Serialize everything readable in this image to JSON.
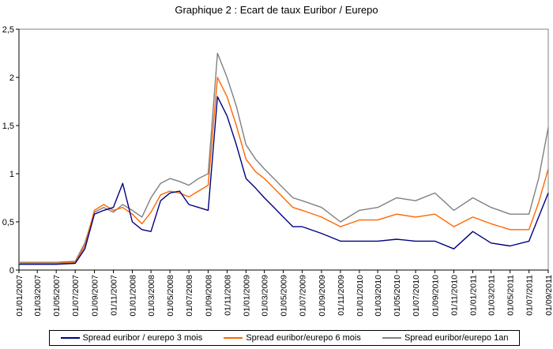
{
  "chart_data": {
    "type": "line",
    "title": "Graphique 2 : Ecart de taux Euribor / Eurepo",
    "xlabel": "",
    "ylabel": "",
    "ylim": [
      0,
      2.5
    ],
    "yticks": [
      "0",
      "0,5",
      "1",
      "1,5",
      "2",
      "2,5"
    ],
    "xticks": [
      "01/01/2007",
      "01/03/2007",
      "01/05/2007",
      "01/07/2007",
      "01/09/2007",
      "01/11/2007",
      "01/01/2008",
      "01/03/2008",
      "01/05/2008",
      "01/07/2008",
      "01/09/2008",
      "01/11/2008",
      "01/01/2009",
      "01/03/2009",
      "01/05/2009",
      "01/07/2009",
      "01/09/2009",
      "01/11/2009",
      "01/01/2010",
      "01/03/2010",
      "01/05/2010",
      "01/07/2010",
      "01/09/2010",
      "01/11/2010",
      "01/01/2011",
      "01/03/2011",
      "01/05/2011",
      "01/07/2011",
      "01/09/2011"
    ],
    "grid": false,
    "legend_position": "bottom",
    "x": [
      "01/01/2007",
      "01/03/2007",
      "01/05/2007",
      "01/07/2007",
      "01/08/2007",
      "01/09/2007",
      "01/10/2007",
      "01/11/2007",
      "01/12/2007",
      "01/01/2008",
      "01/02/2008",
      "01/03/2008",
      "01/04/2008",
      "01/05/2008",
      "01/06/2008",
      "01/07/2008",
      "01/08/2008",
      "01/09/2008",
      "01/10/2008",
      "01/11/2008",
      "01/12/2008",
      "01/01/2009",
      "01/02/2009",
      "01/03/2009",
      "01/04/2009",
      "01/05/2009",
      "01/06/2009",
      "01/07/2009",
      "01/09/2009",
      "01/11/2009",
      "01/01/2010",
      "01/03/2010",
      "01/05/2010",
      "01/07/2010",
      "01/09/2010",
      "01/11/2010",
      "01/01/2011",
      "01/03/2011",
      "01/05/2011",
      "01/07/2011",
      "01/08/2011",
      "01/09/2011"
    ],
    "series": [
      {
        "name": "Spread euribor / eurepo 3 mois",
        "color": "#000080",
        "values": [
          0.06,
          0.06,
          0.06,
          0.07,
          0.22,
          0.58,
          0.62,
          0.65,
          0.9,
          0.5,
          0.42,
          0.4,
          0.72,
          0.8,
          0.82,
          0.68,
          0.65,
          0.62,
          1.8,
          1.6,
          1.3,
          0.95,
          0.85,
          0.75,
          0.65,
          0.55,
          0.45,
          0.45,
          0.38,
          0.3,
          0.3,
          0.3,
          0.32,
          0.3,
          0.3,
          0.22,
          0.4,
          0.28,
          0.25,
          0.3,
          0.55,
          0.8
        ]
      },
      {
        "name": "Spread euribor/eurepo 6 mois",
        "color": "#FF6600",
        "values": [
          0.07,
          0.07,
          0.07,
          0.08,
          0.25,
          0.62,
          0.68,
          0.62,
          0.65,
          0.58,
          0.48,
          0.6,
          0.78,
          0.82,
          0.8,
          0.76,
          0.82,
          0.88,
          2.0,
          1.8,
          1.5,
          1.15,
          1.02,
          0.95,
          0.85,
          0.75,
          0.65,
          0.62,
          0.55,
          0.45,
          0.52,
          0.52,
          0.58,
          0.55,
          0.58,
          0.45,
          0.55,
          0.48,
          0.42,
          0.42,
          0.7,
          1.05
        ]
      },
      {
        "name": "Spread euribor/eurepo 1an",
        "color": "#808080",
        "values": [
          0.08,
          0.08,
          0.08,
          0.09,
          0.28,
          0.6,
          0.65,
          0.6,
          0.68,
          0.62,
          0.55,
          0.75,
          0.9,
          0.95,
          0.92,
          0.88,
          0.95,
          1.0,
          2.25,
          2.0,
          1.7,
          1.3,
          1.15,
          1.05,
          0.95,
          0.85,
          0.75,
          0.72,
          0.65,
          0.5,
          0.62,
          0.65,
          0.75,
          0.72,
          0.8,
          0.62,
          0.75,
          0.65,
          0.58,
          0.58,
          0.95,
          1.48
        ]
      }
    ]
  }
}
